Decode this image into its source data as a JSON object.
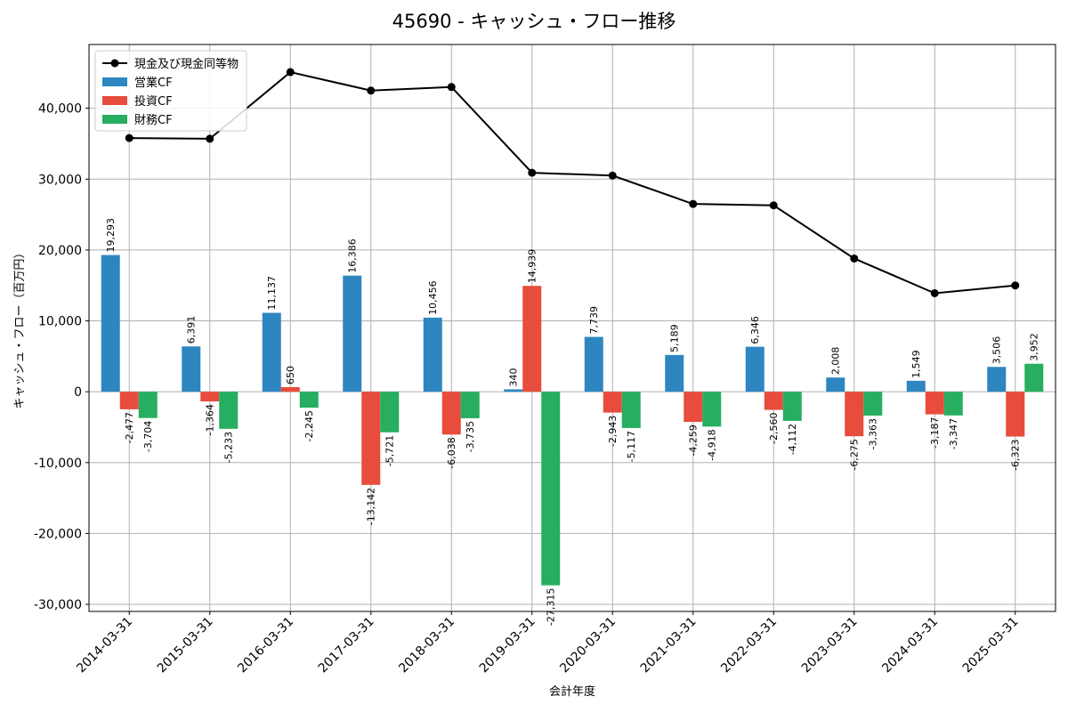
{
  "title": "45690 - キャッシュ・フロー推移",
  "chart_data": {
    "type": "bar",
    "title": "45690 - キャッシュ・フロー推移",
    "xlabel": "会計年度",
    "ylabel": "キャッシュ・フロー（百万円）",
    "ylim": [
      -31000,
      49000
    ],
    "yticks": [
      -30000,
      -20000,
      -10000,
      0,
      10000,
      20000,
      30000,
      40000
    ],
    "grid": true,
    "legend_position": "top-left",
    "categories": [
      "2014-03-31",
      "2015-03-31",
      "2016-03-31",
      "2017-03-31",
      "2018-03-31",
      "2019-03-31",
      "2020-03-31",
      "2021-03-31",
      "2022-03-31",
      "2023-03-31",
      "2024-03-31",
      "2025-03-31"
    ],
    "series": [
      {
        "name": "営業CF",
        "type": "bar",
        "color": "#2e86c1",
        "values": [
          19293,
          6391,
          11137,
          16386,
          10456,
          340,
          7739,
          5189,
          6346,
          2008,
          1549,
          3506
        ]
      },
      {
        "name": "投資CF",
        "type": "bar",
        "color": "#e74c3c",
        "values": [
          -2477,
          -1364,
          650,
          -13142,
          -6038,
          14939,
          -2943,
          -4259,
          -2560,
          -6275,
          -3187,
          -6323
        ]
      },
      {
        "name": "財務CF",
        "type": "bar",
        "color": "#27ae60",
        "values": [
          -3704,
          -5233,
          -2245,
          -5721,
          -3735,
          -27315,
          -5117,
          -4918,
          -4112,
          -3363,
          -3347,
          3952
        ]
      },
      {
        "name": "現金及び現金同等物",
        "type": "line",
        "color": "#000000",
        "values": [
          35800,
          35700,
          45100,
          42500,
          43000,
          30900,
          30500,
          26500,
          26300,
          18800,
          13900,
          15000
        ]
      }
    ]
  }
}
